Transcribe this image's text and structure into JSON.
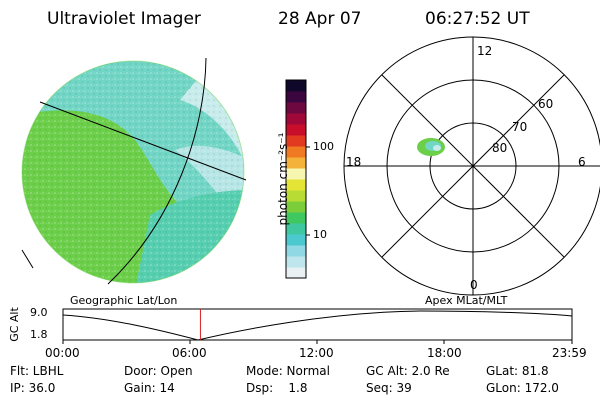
{
  "header": {
    "instrument": "Ultraviolet Imager",
    "date": "28 Apr 07",
    "time": "06:27:52 UT"
  },
  "colorbar": {
    "label": "photon cm⁻²s⁻¹",
    "ticks": [
      "100",
      "10"
    ],
    "colors": [
      "#e8f0f4",
      "#bfe6ec",
      "#90d9e4",
      "#4cc9cf",
      "#3fc8a0",
      "#40c860",
      "#7ccd3a",
      "#b8dc33",
      "#e4e436",
      "#f6f6b0",
      "#f5b23a",
      "#ef7a22",
      "#e23a20",
      "#c80e2a",
      "#a0083a",
      "#6e0840",
      "#3b0640",
      "#10082a"
    ]
  },
  "polar_plot": {
    "mlt_labels": [
      "12",
      "18",
      "6",
      "0"
    ],
    "lat_labels": [
      "60",
      "70",
      "80"
    ]
  },
  "timeline": {
    "left_label": "Geographic Lat/Lon",
    "right_label": "Apex MLat/MLT",
    "y_axis_label": "GC Alt",
    "y_ticks": [
      "9.0",
      "1.8"
    ],
    "x_ticks": [
      "00:00",
      "06:00",
      "12:00",
      "18:00",
      "23:59"
    ],
    "current_time_fraction": 0.27
  },
  "info": {
    "row1": {
      "flt": "Flt: LBHL",
      "door": "Door: Open",
      "mode": "Mode: Normal",
      "gcalt": "GC Alt: 2.0 Re",
      "glat": "GLat: 81.8"
    },
    "row2": {
      "ip": "IP: 36.0",
      "gain": "Gain: 14",
      "dsp": "Dsp:    1.8",
      "seq": "Seq: 39",
      "glon": "GLon: 172.0"
    }
  }
}
